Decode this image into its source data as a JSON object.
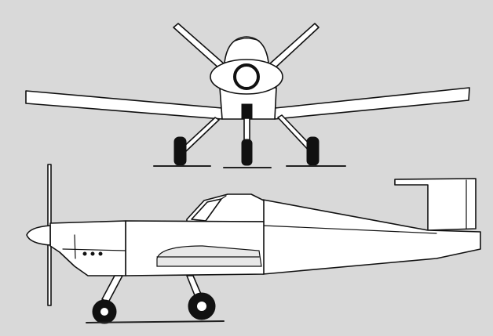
{
  "figure": {
    "views": [
      "front",
      "side"
    ],
    "colors": {
      "background": "#d9d9d9",
      "outline": "#111111",
      "fill": "#ffffff"
    }
  }
}
